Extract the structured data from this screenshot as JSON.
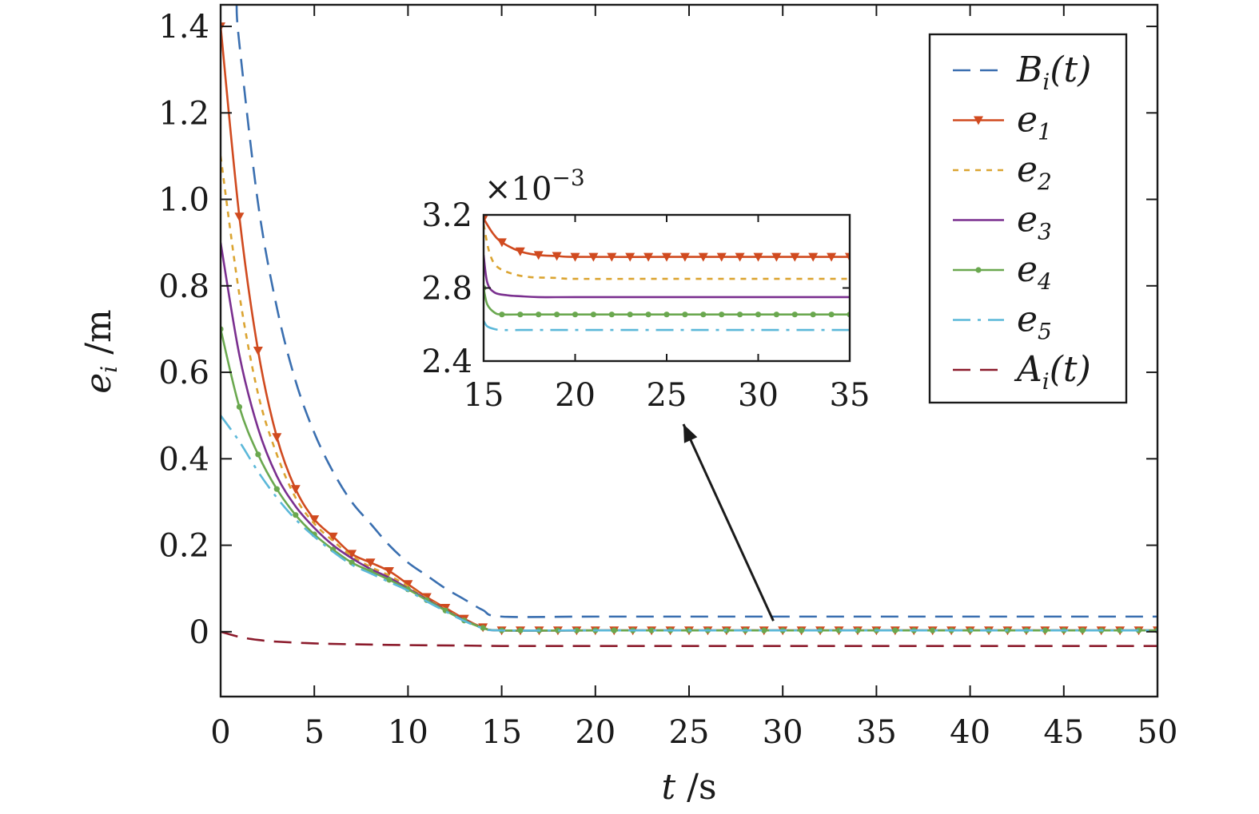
{
  "chart_data": [
    {
      "type": "line",
      "xlabel_var": "t",
      "xlabel_unit": " /s",
      "ylabel_var": "e",
      "ylabel_sub": "i",
      "ylabel_unit": " /m",
      "xlim": [
        0,
        50
      ],
      "ylim": [
        -0.15,
        1.45
      ],
      "x_ticks": [
        0,
        5,
        10,
        15,
        20,
        25,
        30,
        35,
        40,
        45,
        50
      ],
      "x_tick_labels": [
        "0",
        "5",
        "10",
        "15",
        "20",
        "25",
        "30",
        "35",
        "40",
        "45",
        "50"
      ],
      "y_ticks": [
        0,
        0.2,
        0.4,
        0.6,
        0.8,
        1.0,
        1.2,
        1.4
      ],
      "y_tick_labels": [
        "0",
        "0.2",
        "0.4",
        "0.6",
        "0.8",
        "1.0",
        "1.2",
        "1.4"
      ],
      "grid": false,
      "legend_position": "top-right",
      "series": [
        {
          "name": "B",
          "sub": "i",
          "suffix": "(t)",
          "color": "#3a6fb0",
          "style": "dashed",
          "marker": "none",
          "x": [
            0.85,
            1,
            2,
            3,
            4,
            5,
            6,
            7,
            8,
            9,
            10,
            11,
            12,
            13,
            14,
            15,
            20,
            30,
            40,
            50
          ],
          "y": [
            1.45,
            1.36,
            0.99,
            0.75,
            0.58,
            0.46,
            0.37,
            0.3,
            0.25,
            0.2,
            0.16,
            0.13,
            0.1,
            0.075,
            0.05,
            0.035,
            0.035,
            0.035,
            0.035,
            0.035
          ]
        },
        {
          "name": "e",
          "sub": "1",
          "suffix": "",
          "color": "#d04a1f",
          "style": "solid",
          "marker": "triangle-down",
          "x": [
            0,
            1,
            2,
            3,
            4,
            5,
            6,
            7,
            8,
            9,
            10,
            11,
            12,
            13,
            14,
            15,
            20,
            30,
            40,
            50
          ],
          "y": [
            1.4,
            0.96,
            0.65,
            0.45,
            0.33,
            0.26,
            0.22,
            0.18,
            0.16,
            0.14,
            0.11,
            0.08,
            0.055,
            0.03,
            0.01,
            0.003,
            0.003,
            0.003,
            0.003,
            0.003
          ]
        },
        {
          "name": "e",
          "sub": "2",
          "suffix": "",
          "color": "#dba431",
          "style": "dotted",
          "marker": "none",
          "x": [
            0,
            1,
            2,
            3,
            4,
            5,
            6,
            7,
            8,
            9,
            10,
            11,
            12,
            13,
            14,
            15,
            20,
            30,
            40,
            50
          ],
          "y": [
            1.1,
            0.78,
            0.55,
            0.41,
            0.31,
            0.25,
            0.21,
            0.175,
            0.15,
            0.13,
            0.105,
            0.077,
            0.052,
            0.028,
            0.01,
            0.003,
            0.003,
            0.003,
            0.003,
            0.003
          ]
        },
        {
          "name": "e",
          "sub": "3",
          "suffix": "",
          "color": "#7a2f8f",
          "style": "solid",
          "marker": "none",
          "x": [
            0,
            1,
            2,
            3,
            4,
            5,
            6,
            7,
            8,
            9,
            10,
            11,
            12,
            13,
            14,
            15,
            20,
            30,
            40,
            50
          ],
          "y": [
            0.9,
            0.64,
            0.47,
            0.36,
            0.29,
            0.24,
            0.2,
            0.17,
            0.145,
            0.125,
            0.1,
            0.075,
            0.05,
            0.027,
            0.009,
            0.003,
            0.003,
            0.003,
            0.003,
            0.003
          ]
        },
        {
          "name": "e",
          "sub": "4",
          "suffix": "",
          "color": "#6aa84f",
          "style": "solid",
          "marker": "dot",
          "x": [
            0,
            1,
            2,
            3,
            4,
            5,
            6,
            7,
            8,
            9,
            10,
            11,
            12,
            13,
            14,
            15,
            20,
            30,
            40,
            50
          ],
          "y": [
            0.7,
            0.52,
            0.41,
            0.33,
            0.27,
            0.225,
            0.19,
            0.16,
            0.14,
            0.12,
            0.098,
            0.073,
            0.049,
            0.026,
            0.009,
            0.003,
            0.003,
            0.003,
            0.003,
            0.003
          ]
        },
        {
          "name": "e",
          "sub": "5",
          "suffix": "",
          "color": "#5bb8d9",
          "style": "dashdot",
          "marker": "none",
          "x": [
            0,
            1,
            2,
            3,
            4,
            5,
            6,
            7,
            8,
            9,
            10,
            11,
            12,
            13,
            14,
            15,
            20,
            30,
            40,
            50
          ],
          "y": [
            0.5,
            0.44,
            0.37,
            0.31,
            0.26,
            0.22,
            0.185,
            0.155,
            0.135,
            0.115,
            0.095,
            0.07,
            0.047,
            0.025,
            0.008,
            0.003,
            0.003,
            0.003,
            0.003,
            0.003
          ]
        },
        {
          "name": "A",
          "sub": "i",
          "suffix": "(t)",
          "color": "#8b1a2b",
          "style": "dashed",
          "marker": "none",
          "x": [
            0,
            1,
            2,
            3,
            5,
            7,
            10,
            13,
            15,
            20,
            30,
            40,
            50
          ],
          "y": [
            0.0,
            -0.012,
            -0.019,
            -0.023,
            -0.027,
            -0.029,
            -0.031,
            -0.032,
            -0.033,
            -0.033,
            -0.033,
            -0.033,
            -0.033
          ]
        }
      ],
      "annotation": {
        "type": "arrow",
        "from": [
          29.5,
          0.025
        ],
        "to": [
          24.7,
          0.48
        ]
      }
    },
    {
      "type": "line",
      "role": "inset",
      "scale_prefix": "×10",
      "scale_exp": "−3",
      "xlim": [
        15,
        35
      ],
      "ylim": [
        2.4,
        3.2
      ],
      "x_ticks": [
        15,
        20,
        25,
        30,
        35
      ],
      "x_tick_labels": [
        "15",
        "20",
        "25",
        "30",
        "35"
      ],
      "y_ticks": [
        2.4,
        2.8,
        3.2
      ],
      "y_tick_labels": [
        "2.4",
        "2.8",
        "3.2"
      ],
      "series": [
        {
          "sub": "1",
          "color": "#d04a1f",
          "style": "solid",
          "marker": "triangle-down",
          "x": [
            15,
            15.5,
            16,
            17,
            18,
            19,
            20,
            25,
            30,
            35
          ],
          "y": [
            3.18,
            3.1,
            3.05,
            3.0,
            2.98,
            2.975,
            2.97,
            2.97,
            2.97,
            2.97
          ]
        },
        {
          "sub": "2",
          "color": "#dba431",
          "style": "dotted",
          "marker": "none",
          "x": [
            15,
            15.3,
            15.7,
            16.5,
            17.5,
            19,
            20,
            25,
            30,
            35
          ],
          "y": [
            3.15,
            3.0,
            2.92,
            2.88,
            2.86,
            2.855,
            2.85,
            2.85,
            2.85,
            2.85
          ]
        },
        {
          "sub": "3",
          "color": "#7a2f8f",
          "style": "solid",
          "marker": "none",
          "x": [
            15,
            15.2,
            15.6,
            16.3,
            17,
            18,
            20,
            25,
            30,
            35
          ],
          "y": [
            2.98,
            2.83,
            2.775,
            2.76,
            2.755,
            2.75,
            2.75,
            2.75,
            2.75,
            2.75
          ]
        },
        {
          "sub": "4",
          "color": "#6aa84f",
          "style": "solid",
          "marker": "dot",
          "x": [
            15,
            15.2,
            15.6,
            16,
            17,
            18,
            20,
            25,
            30,
            35
          ],
          "y": [
            2.8,
            2.71,
            2.665,
            2.655,
            2.655,
            2.655,
            2.655,
            2.655,
            2.655,
            2.655
          ]
        },
        {
          "sub": "5",
          "color": "#5bb8d9",
          "style": "dashdot",
          "marker": "none",
          "x": [
            15,
            15.2,
            15.6,
            16,
            17,
            18,
            20,
            25,
            30,
            35
          ],
          "y": [
            2.62,
            2.59,
            2.575,
            2.57,
            2.57,
            2.57,
            2.57,
            2.57,
            2.57,
            2.57
          ]
        }
      ]
    }
  ]
}
